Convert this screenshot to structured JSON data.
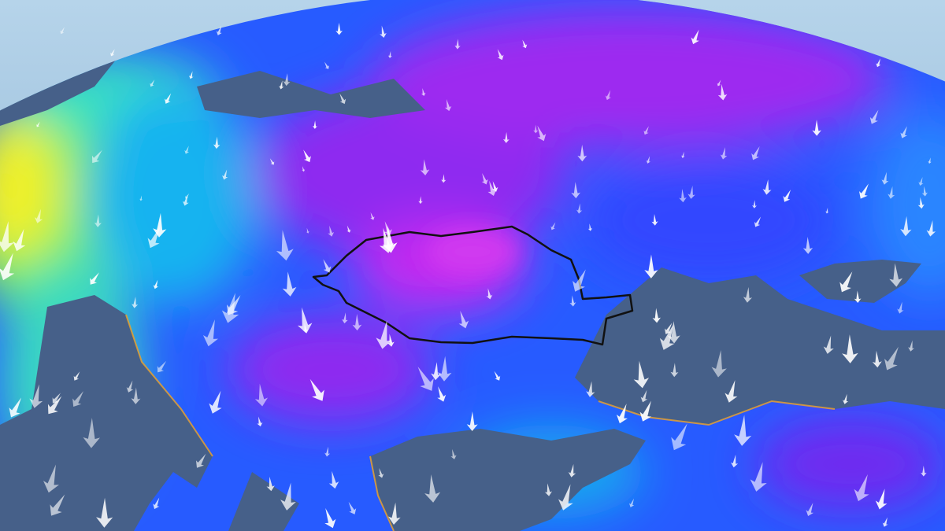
{
  "map": {
    "type": "wind-and-temperature-globe",
    "colors": {
      "sky": "#9cc3e0",
      "land": "#3f5a85",
      "ocean_cold": "#1a3cff",
      "purple": "#8a1ef0",
      "magenta": "#c020f0",
      "cyan": "#10b8f0",
      "green": "#40e870",
      "yellow": "#f0e020",
      "orange": "#f0a020",
      "border": "#111111",
      "arrow": "#ffffff"
    },
    "wind_direction": "north-to-south",
    "highlighted_region": "country-outline"
  }
}
